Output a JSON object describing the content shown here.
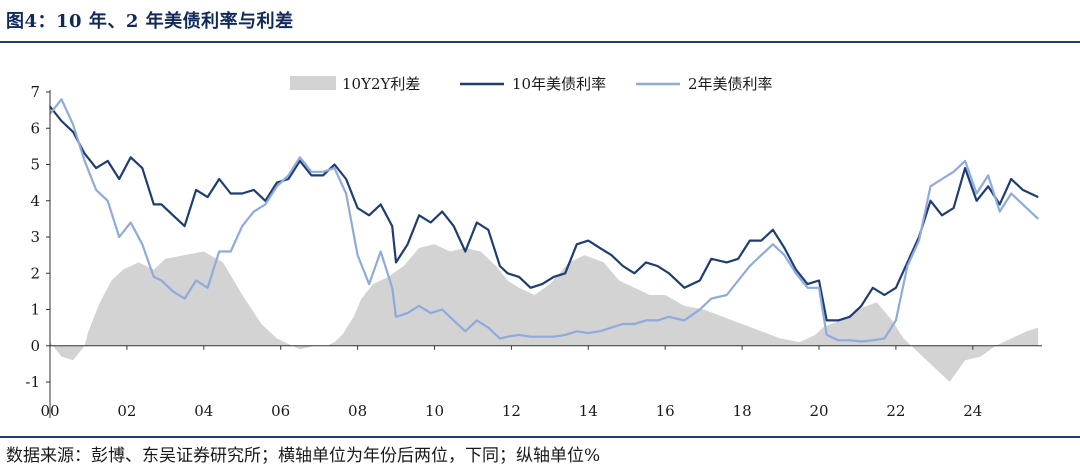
{
  "header": {
    "title": "图4：10 年、2 年美债利率与利差"
  },
  "footer": {
    "source": "数据来源：彭博、东吴证券研究所；横轴单位为年份后两位，下同；纵轴单位%"
  },
  "colors": {
    "spread": "#d3d3d3",
    "y10": "#1f3d73",
    "y2": "#8faadc",
    "rule": "#1f3d73"
  },
  "chart_data": {
    "type": "line",
    "x_ticks": [
      "00",
      "02",
      "04",
      "06",
      "08",
      "10",
      "12",
      "14",
      "16",
      "18",
      "20",
      "22",
      "24"
    ],
    "y_ticks": [
      "-1",
      "0",
      "1",
      "2",
      "3",
      "4",
      "5",
      "6",
      "7"
    ],
    "ylim": [
      -1,
      7
    ],
    "xlim": [
      2000,
      2025.8
    ],
    "grid": false,
    "legend_position": "top",
    "series": [
      {
        "name": "10Y2Y利差",
        "kind": "area",
        "x": [
          2000.0,
          2000.3,
          2000.6,
          2000.9,
          2001.0,
          2001.3,
          2001.6,
          2001.9,
          2002.3,
          2002.7,
          2003.0,
          2003.5,
          2004.0,
          2004.5,
          2005.0,
          2005.5,
          2005.9,
          2006.2,
          2006.5,
          2006.9,
          2007.2,
          2007.4,
          2007.6,
          2007.9,
          2008.1,
          2008.4,
          2008.8,
          2009.2,
          2009.6,
          2010.0,
          2010.4,
          2010.8,
          2011.2,
          2011.6,
          2011.9,
          2012.2,
          2012.6,
          2013.0,
          2013.5,
          2013.9,
          2014.4,
          2014.8,
          2015.2,
          2015.6,
          2016.0,
          2016.5,
          2017.0,
          2017.5,
          2018.0,
          2018.5,
          2019.0,
          2019.5,
          2019.9,
          2020.1,
          2020.3,
          2020.6,
          2021.0,
          2021.5,
          2021.9,
          2022.2,
          2022.5,
          2022.8,
          2023.0,
          2023.4,
          2023.8,
          2024.2,
          2024.6,
          2025.0,
          2025.4,
          2025.7
        ],
        "values": [
          0.1,
          -0.3,
          -0.4,
          0.0,
          0.4,
          1.2,
          1.8,
          2.1,
          2.3,
          2.1,
          2.4,
          2.5,
          2.6,
          2.3,
          1.4,
          0.6,
          0.2,
          0.05,
          -0.1,
          0.0,
          0.0,
          0.1,
          0.3,
          0.8,
          1.3,
          1.7,
          1.9,
          2.2,
          2.7,
          2.8,
          2.6,
          2.7,
          2.6,
          2.2,
          1.8,
          1.6,
          1.4,
          1.7,
          2.3,
          2.5,
          2.3,
          1.8,
          1.6,
          1.4,
          1.4,
          1.1,
          1.0,
          0.8,
          0.6,
          0.4,
          0.2,
          0.1,
          0.3,
          0.5,
          0.6,
          0.7,
          1.0,
          1.2,
          0.7,
          0.2,
          -0.1,
          -0.4,
          -0.6,
          -1.0,
          -0.4,
          -0.3,
          0.0,
          0.2,
          0.4,
          0.5
        ]
      },
      {
        "name": "10年美债利率",
        "kind": "line",
        "x": [
          2000.0,
          2000.3,
          2000.6,
          2000.9,
          2001.2,
          2001.5,
          2001.8,
          2002.1,
          2002.4,
          2002.7,
          2002.9,
          2003.2,
          2003.5,
          2003.8,
          2004.1,
          2004.4,
          2004.7,
          2005.0,
          2005.3,
          2005.6,
          2005.9,
          2006.2,
          2006.5,
          2006.8,
          2007.1,
          2007.4,
          2007.7,
          2008.0,
          2008.3,
          2008.6,
          2008.9,
          2009.0,
          2009.3,
          2009.6,
          2009.9,
          2010.2,
          2010.5,
          2010.8,
          2011.1,
          2011.4,
          2011.7,
          2011.9,
          2012.2,
          2012.5,
          2012.8,
          2013.1,
          2013.4,
          2013.7,
          2014.0,
          2014.3,
          2014.6,
          2014.9,
          2015.2,
          2015.5,
          2015.8,
          2016.1,
          2016.5,
          2016.9,
          2017.2,
          2017.6,
          2017.9,
          2018.2,
          2018.5,
          2018.8,
          2019.1,
          2019.4,
          2019.7,
          2020.0,
          2020.2,
          2020.5,
          2020.8,
          2021.1,
          2021.4,
          2021.7,
          2022.0,
          2022.3,
          2022.6,
          2022.9,
          2023.2,
          2023.5,
          2023.8,
          2024.1,
          2024.4,
          2024.7,
          2025.0,
          2025.3,
          2025.7
        ],
        "values": [
          6.6,
          6.2,
          5.9,
          5.3,
          4.9,
          5.1,
          4.6,
          5.2,
          4.9,
          3.9,
          3.9,
          3.6,
          3.3,
          4.3,
          4.1,
          4.6,
          4.2,
          4.2,
          4.3,
          4.0,
          4.5,
          4.6,
          5.1,
          4.7,
          4.7,
          5.0,
          4.6,
          3.8,
          3.6,
          3.9,
          3.3,
          2.3,
          2.8,
          3.6,
          3.4,
          3.7,
          3.3,
          2.6,
          3.4,
          3.2,
          2.2,
          2.0,
          1.9,
          1.6,
          1.7,
          1.9,
          2.0,
          2.8,
          2.9,
          2.7,
          2.5,
          2.2,
          2.0,
          2.3,
          2.2,
          2.0,
          1.6,
          1.8,
          2.4,
          2.3,
          2.4,
          2.9,
          2.9,
          3.2,
          2.7,
          2.1,
          1.7,
          1.8,
          0.7,
          0.7,
          0.8,
          1.1,
          1.6,
          1.4,
          1.6,
          2.3,
          3.0,
          4.0,
          3.6,
          3.8,
          4.9,
          4.0,
          4.4,
          3.9,
          4.6,
          4.3,
          4.1
        ]
      },
      {
        "name": "2年美债利率",
        "kind": "line",
        "x": [
          2000.0,
          2000.3,
          2000.6,
          2000.9,
          2001.2,
          2001.5,
          2001.8,
          2002.1,
          2002.4,
          2002.7,
          2002.9,
          2003.2,
          2003.5,
          2003.8,
          2004.1,
          2004.4,
          2004.7,
          2005.0,
          2005.3,
          2005.6,
          2005.9,
          2006.2,
          2006.5,
          2006.8,
          2007.1,
          2007.4,
          2007.7,
          2008.0,
          2008.3,
          2008.6,
          2008.9,
          2009.0,
          2009.3,
          2009.6,
          2009.9,
          2010.2,
          2010.5,
          2010.8,
          2011.1,
          2011.4,
          2011.7,
          2011.9,
          2012.2,
          2012.5,
          2012.8,
          2013.1,
          2013.4,
          2013.7,
          2014.0,
          2014.3,
          2014.6,
          2014.9,
          2015.2,
          2015.5,
          2015.8,
          2016.1,
          2016.5,
          2016.9,
          2017.2,
          2017.6,
          2017.9,
          2018.2,
          2018.5,
          2018.8,
          2019.1,
          2019.4,
          2019.7,
          2020.0,
          2020.2,
          2020.5,
          2020.8,
          2021.1,
          2021.4,
          2021.7,
          2022.0,
          2022.3,
          2022.6,
          2022.9,
          2023.2,
          2023.5,
          2023.8,
          2024.1,
          2024.4,
          2024.7,
          2025.0,
          2025.3,
          2025.7
        ],
        "values": [
          6.4,
          6.8,
          6.1,
          5.1,
          4.3,
          4.0,
          3.0,
          3.4,
          2.8,
          1.9,
          1.8,
          1.5,
          1.3,
          1.8,
          1.6,
          2.6,
          2.6,
          3.3,
          3.7,
          3.9,
          4.4,
          4.7,
          5.2,
          4.8,
          4.8,
          4.9,
          4.2,
          2.5,
          1.7,
          2.6,
          1.6,
          0.8,
          0.9,
          1.1,
          0.9,
          1.0,
          0.7,
          0.4,
          0.7,
          0.5,
          0.2,
          0.25,
          0.3,
          0.25,
          0.25,
          0.25,
          0.3,
          0.4,
          0.35,
          0.4,
          0.5,
          0.6,
          0.6,
          0.7,
          0.7,
          0.8,
          0.7,
          1.0,
          1.3,
          1.4,
          1.8,
          2.2,
          2.5,
          2.8,
          2.5,
          2.0,
          1.6,
          1.6,
          0.3,
          0.15,
          0.15,
          0.12,
          0.15,
          0.2,
          0.7,
          2.2,
          2.9,
          4.4,
          4.6,
          4.8,
          5.1,
          4.2,
          4.7,
          3.7,
          4.2,
          3.9,
          3.5
        ]
      }
    ]
  }
}
